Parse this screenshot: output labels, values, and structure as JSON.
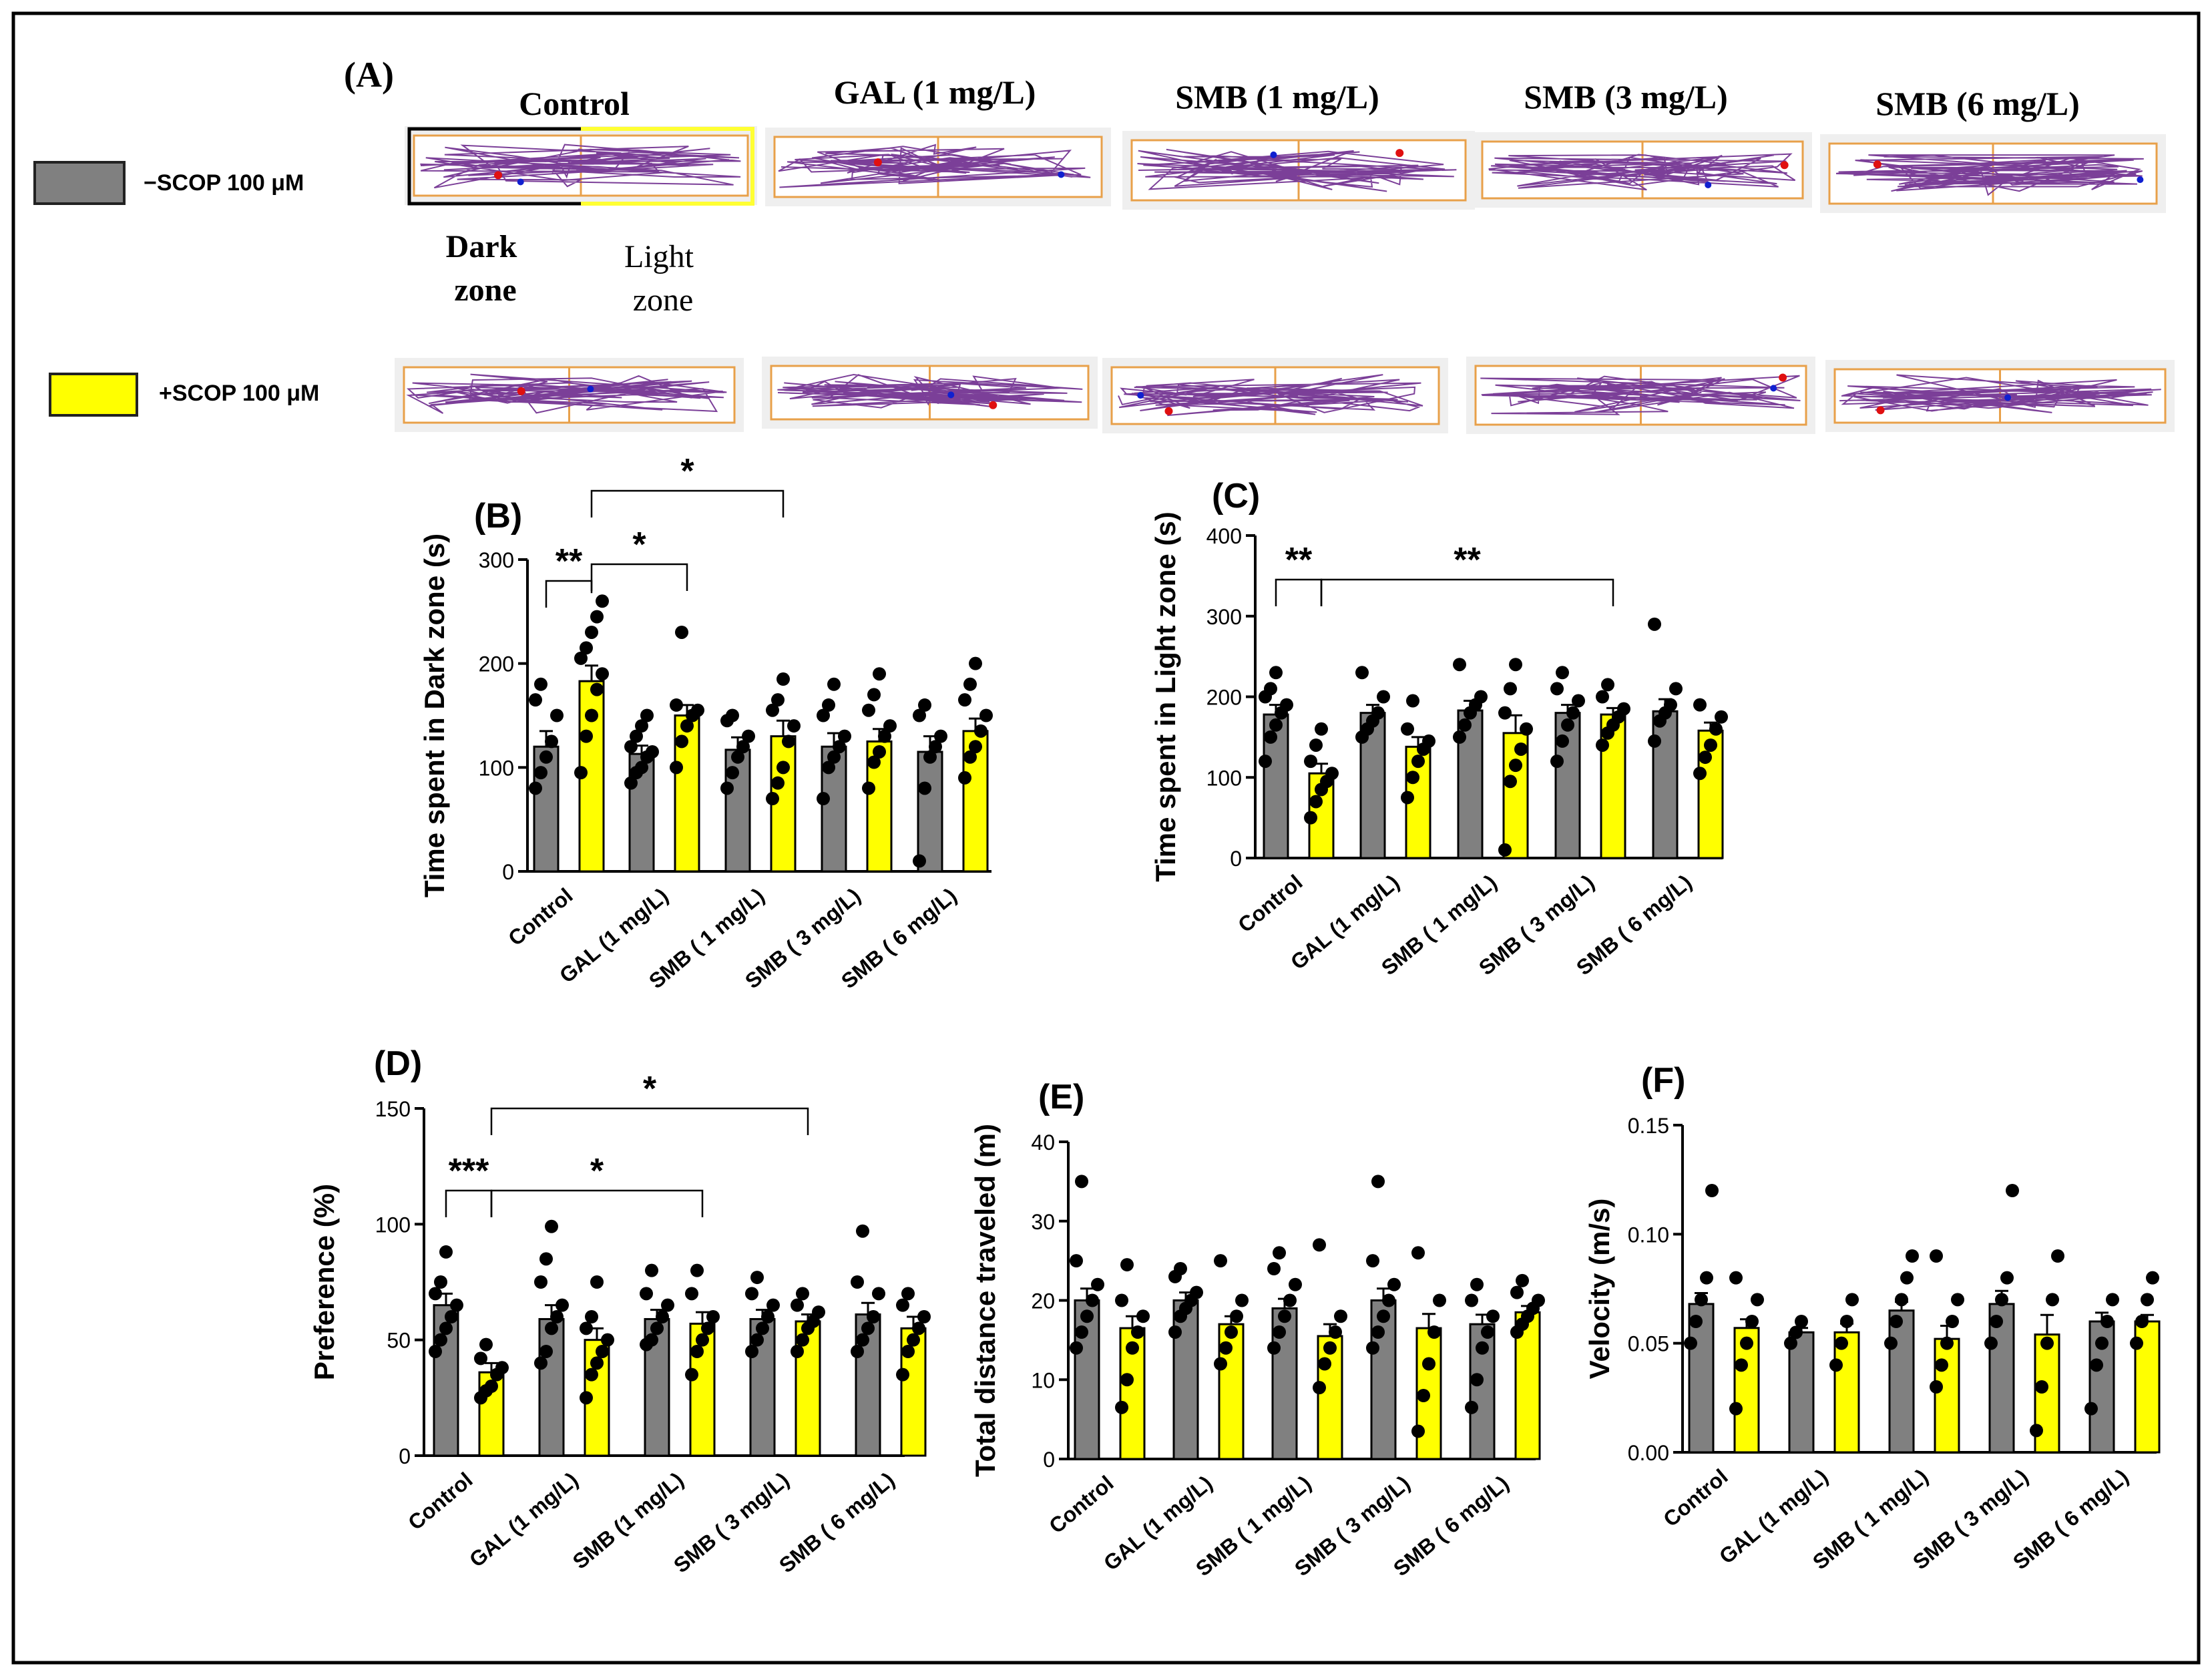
{
  "colors": {
    "minus_scop": "#808080",
    "plus_scop": "#ffff00",
    "track": "#7b3f98",
    "arena_border": "#e8a04a",
    "dot": "#000000",
    "start_marker": "#e01010",
    "end_marker": "#1020d0"
  },
  "panel_a": {
    "label": "(A)",
    "groups": [
      "Control",
      "GAL (1 mg/L)",
      "SMB (1 mg/L)",
      "SMB (3 mg/L)",
      "SMB (6 mg/L)"
    ],
    "dark_zone_label": "Dark zone",
    "light_zone_label": "Light zone",
    "legend": [
      {
        "label": "−SCOP 100 μM",
        "color": "#808080"
      },
      {
        "label": "+SCOP 100 μM",
        "color": "#ffff00"
      }
    ]
  },
  "chart_data": [
    {
      "panel": "(B)",
      "type": "bar",
      "ylabel": "Time spent in Dark zone (s)",
      "ylim": [
        0,
        300
      ],
      "yticks": [
        "0",
        "100",
        "200",
        "300"
      ],
      "categories": [
        "Control",
        "GAL (1 mg/L)",
        "SMB ( 1 mg/L)",
        "SMB ( 3 mg/L)",
        "SMB ( 6 mg/L)"
      ],
      "series": [
        {
          "values": [
            120,
            113,
            117,
            120,
            115
          ],
          "sem": [
            15,
            8,
            12,
            13,
            15
          ],
          "points": [
            [
              80,
              95,
              110,
              125,
              150,
              165,
              180
            ],
            [
              85,
              95,
              100,
              110,
              115,
              120,
              130,
              140,
              150
            ],
            [
              80,
              95,
              110,
              120,
              130,
              145,
              150
            ],
            [
              70,
              100,
              110,
              120,
              130,
              150,
              160,
              180
            ],
            [
              10,
              80,
              110,
              120,
              130,
              150,
              160
            ]
          ]
        },
        {
          "values": [
            183,
            150,
            130,
            125,
            135
          ],
          "sem": [
            15,
            10,
            15,
            12,
            12
          ],
          "points": [
            [
              95,
              130,
              150,
              175,
              190,
              205,
              215,
              230,
              245,
              260
            ],
            [
              100,
              125,
              140,
              150,
              155,
              160,
              230
            ],
            [
              70,
              85,
              100,
              125,
              140,
              155,
              165,
              185
            ],
            [
              80,
              105,
              115,
              130,
              140,
              155,
              170,
              190
            ],
            [
              90,
              110,
              120,
              135,
              150,
              165,
              180,
              200
            ]
          ]
        }
      ],
      "annotations": [
        "**",
        "*",
        "*"
      ]
    },
    {
      "panel": "(C)",
      "type": "bar",
      "ylabel": "Time spent in Light zone (s)",
      "ylim": [
        0,
        400
      ],
      "yticks": [
        "0",
        "100",
        "200",
        "300",
        "400"
      ],
      "categories": [
        "Control",
        "GAL (1 mg/L)",
        "SMB ( 1 mg/L)",
        "SMB ( 3 mg/L)",
        "SMB ( 6 mg/L)"
      ],
      "series": [
        {
          "values": [
            178,
            180,
            183,
            180,
            182
          ],
          "sem": [
            12,
            10,
            12,
            10,
            15
          ],
          "points": [
            [
              120,
              150,
              165,
              180,
              190,
              200,
              210,
              230
            ],
            [
              150,
              160,
              170,
              180,
              200,
              230
            ],
            [
              150,
              165,
              180,
              190,
              200,
              240
            ],
            [
              120,
              145,
              165,
              180,
              195,
              210,
              230
            ],
            [
              145,
              170,
              180,
              190,
              210,
              290
            ]
          ]
        },
        {
          "values": [
            105,
            138,
            155,
            178,
            158
          ],
          "sem": [
            12,
            12,
            22,
            8,
            10
          ],
          "points": [
            [
              50,
              70,
              85,
              95,
              105,
              120,
              140,
              160
            ],
            [
              75,
              100,
              120,
              135,
              145,
              160,
              195
            ],
            [
              10,
              95,
              115,
              135,
              160,
              180,
              210,
              240
            ],
            [
              140,
              155,
              165,
              175,
              185,
              200,
              215
            ],
            [
              105,
              125,
              140,
              160,
              175,
              190
            ]
          ]
        }
      ],
      "annotations": [
        "**",
        "**"
      ]
    },
    {
      "panel": "(D)",
      "type": "bar",
      "ylabel": "Preference (%)",
      "ylim": [
        0,
        150
      ],
      "yticks": [
        "0",
        "50",
        "100",
        "150"
      ],
      "categories": [
        "Control",
        "GAL (1 mg/L)",
        "SMB (1 mg/L)",
        "SMB ( 3 mg/L)",
        "SMB ( 6 mg/L)"
      ],
      "series": [
        {
          "values": [
            65,
            59,
            59,
            59,
            61
          ],
          "sem": [
            5,
            6,
            4,
            4,
            5
          ],
          "points": [
            [
              45,
              50,
              55,
              60,
              65,
              70,
              75,
              88
            ],
            [
              40,
              45,
              55,
              60,
              65,
              75,
              85,
              99
            ],
            [
              48,
              50,
              55,
              60,
              65,
              70,
              80
            ],
            [
              45,
              50,
              55,
              60,
              65,
              70,
              77
            ],
            [
              45,
              50,
              55,
              60,
              70,
              75,
              97
            ]
          ]
        },
        {
          "values": [
            36,
            50,
            57,
            58,
            55
          ],
          "sem": [
            4,
            5,
            5,
            3,
            5
          ],
          "points": [
            [
              25,
              28,
              30,
              35,
              38,
              42,
              48
            ],
            [
              25,
              35,
              40,
              45,
              50,
              55,
              60,
              75
            ],
            [
              35,
              45,
              50,
              55,
              60,
              70,
              80
            ],
            [
              45,
              50,
              55,
              58,
              62,
              65,
              70
            ],
            [
              35,
              45,
              50,
              55,
              60,
              65,
              70
            ]
          ]
        }
      ],
      "annotations": [
        "***",
        "*",
        "*"
      ]
    },
    {
      "panel": "(E)",
      "type": "bar",
      "ylabel": "Total distance traveled (m)",
      "ylim": [
        0,
        40
      ],
      "yticks": [
        "0",
        "10",
        "20",
        "30",
        "40"
      ],
      "categories": [
        "Control",
        "GAL (1 mg/L)",
        "SMB ( 1 mg/L)",
        "SMB ( 3 mg/L)",
        "SMB ( 6 mg/L)"
      ],
      "series": [
        {
          "values": [
            20,
            20,
            19,
            20,
            17
          ],
          "sem": [
            1.5,
            1,
            1.2,
            1.5,
            1.2
          ],
          "points": [
            [
              14,
              16,
              18,
              20,
              22,
              25,
              35
            ],
            [
              16,
              18,
              19,
              20,
              21,
              23,
              24
            ],
            [
              14,
              16,
              18,
              20,
              22,
              24,
              26
            ],
            [
              14,
              16,
              18,
              20,
              22,
              25,
              35
            ],
            [
              6.5,
              10,
              14,
              16,
              18,
              20,
              22
            ]
          ]
        },
        {
          "values": [
            16.5,
            17,
            15.5,
            16.5,
            18.5
          ],
          "sem": [
            1.5,
            1,
            1.5,
            1.8,
            0.8
          ],
          "points": [
            [
              6.5,
              10,
              14,
              16,
              18,
              20,
              24.5
            ],
            [
              12,
              14,
              16,
              18,
              20,
              25
            ],
            [
              9,
              12,
              14,
              16,
              18,
              27
            ],
            [
              3.5,
              8,
              12,
              16,
              20,
              26
            ],
            [
              16,
              17,
              18,
              19,
              20,
              21,
              22.5
            ]
          ]
        }
      ],
      "annotations": []
    },
    {
      "panel": "(F)",
      "type": "bar",
      "ylabel": "Velocity (m/s)",
      "ylim": [
        0,
        0.15
      ],
      "yticks": [
        "0.00",
        "0.05",
        "0.10",
        "0.15"
      ],
      "categories": [
        "Control",
        "GAL (1 mg/L)",
        "SMB ( 1 mg/L)",
        "SMB ( 3 mg/L)",
        "SMB ( 6 mg/L)"
      ],
      "series": [
        {
          "values": [
            0.068,
            0.055,
            0.065,
            0.068,
            0.06
          ],
          "sem": [
            0.005,
            0.002,
            0.004,
            0.006,
            0.004
          ],
          "points": [
            [
              0.05,
              0.06,
              0.07,
              0.08,
              0.12
            ],
            [
              0.05,
              0.055,
              0.06
            ],
            [
              0.05,
              0.06,
              0.07,
              0.08,
              0.09
            ],
            [
              0.05,
              0.06,
              0.07,
              0.08,
              0.12
            ],
            [
              0.02,
              0.04,
              0.05,
              0.06,
              0.07
            ]
          ]
        },
        {
          "values": [
            0.057,
            0.055,
            0.052,
            0.054,
            0.06
          ],
          "sem": [
            0.004,
            0.004,
            0.006,
            0.009,
            0.003
          ],
          "points": [
            [
              0.02,
              0.04,
              0.05,
              0.06,
              0.07,
              0.08
            ],
            [
              0.04,
              0.05,
              0.06,
              0.07
            ],
            [
              0.03,
              0.04,
              0.05,
              0.06,
              0.07,
              0.09
            ],
            [
              0.01,
              0.03,
              0.05,
              0.07,
              0.09
            ],
            [
              0.05,
              0.06,
              0.07,
              0.08
            ]
          ]
        }
      ],
      "annotations": []
    }
  ]
}
